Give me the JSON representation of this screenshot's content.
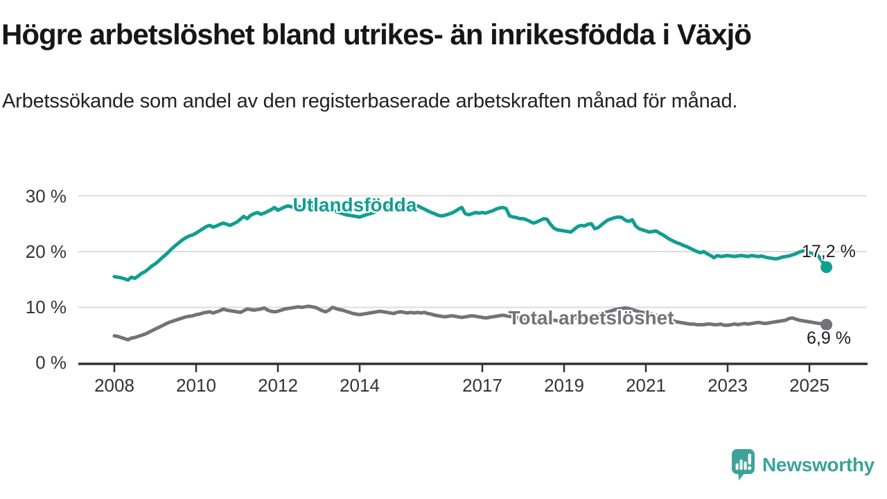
{
  "header": {
    "title": "Högre arbetslöshet bland utrikes- än inrikesfödda i Växjö",
    "subtitle": "Arbetssökande som andel av den registerbaserade arbetskraften månad för månad."
  },
  "chart_data": {
    "type": "line",
    "title": "Högre arbetslöshet bland utrikes- än inrikesfödda i Växjö",
    "unit": "%",
    "x_start": "2008-01",
    "x_end": "2025-06",
    "frequency": "monthly",
    "grid": "horizontal",
    "legend_position": "inline-labels",
    "ylim": [
      0,
      32
    ],
    "y_ticks": [
      "30 %",
      "20 %",
      "10 %",
      "0 %"
    ],
    "y_tick_values": [
      30,
      20,
      10,
      0
    ],
    "x_ticks": [
      "2008",
      "2010",
      "2012",
      "2014",
      "2017",
      "2019",
      "2021",
      "2023",
      "2025"
    ],
    "x_tick_years": [
      2008,
      2010,
      2012,
      2014,
      2017,
      2019,
      2021,
      2023,
      2025
    ],
    "series": [
      {
        "name": "Utlandsfödda",
        "color": "#119e90",
        "end_label": "17,2 %",
        "last_value": 17.2,
        "values": [
          15.5,
          15.4,
          15.3,
          15.1,
          14.9,
          15.4,
          15.2,
          15.6,
          16.1,
          16.4,
          16.9,
          17.4,
          17.8,
          18.3,
          18.9,
          19.4,
          20.0,
          20.6,
          21.1,
          21.6,
          22.1,
          22.5,
          22.8,
          23.0,
          23.3,
          23.7,
          24.1,
          24.5,
          24.7,
          24.4,
          24.6,
          24.9,
          25.1,
          24.9,
          24.7,
          25.0,
          25.3,
          25.8,
          26.3,
          25.9,
          26.5,
          26.8,
          27.0,
          26.7,
          26.9,
          27.2,
          27.5,
          27.9,
          27.4,
          27.7,
          28.0,
          28.2,
          28.0,
          28.3,
          28.1,
          27.9,
          28.2,
          28.4,
          28.2,
          28.0,
          28.3,
          28.1,
          27.9,
          27.7,
          27.5,
          27.2,
          27.0,
          26.8,
          26.6,
          26.5,
          26.4,
          26.3,
          26.2,
          26.4,
          26.6,
          26.8,
          27.0,
          27.2,
          27.4,
          27.6,
          27.8,
          28.0,
          28.1,
          28.2,
          28.2,
          28.0,
          27.9,
          28.1,
          28.3,
          28.2,
          27.9,
          27.6,
          27.3,
          27.0,
          26.8,
          26.5,
          26.4,
          26.5,
          26.7,
          26.9,
          27.2,
          27.6,
          27.9,
          26.8,
          26.6,
          26.8,
          27.0,
          26.9,
          27.0,
          26.9,
          27.1,
          27.3,
          27.6,
          27.8,
          27.9,
          27.7,
          26.4,
          26.2,
          26.1,
          25.9,
          25.9,
          25.7,
          25.4,
          25.1,
          25.3,
          25.6,
          25.9,
          25.8,
          24.9,
          24.2,
          23.9,
          23.8,
          23.7,
          23.6,
          23.5,
          24.0,
          24.5,
          24.7,
          24.6,
          24.9,
          25.0,
          24.1,
          24.3,
          24.8,
          25.3,
          25.7,
          25.9,
          26.1,
          26.2,
          26.1,
          25.6,
          25.4,
          25.7,
          24.6,
          24.1,
          23.9,
          23.7,
          23.5,
          23.6,
          23.7,
          23.3,
          23.0,
          22.6,
          22.2,
          21.9,
          21.6,
          21.4,
          21.1,
          20.9,
          20.6,
          20.3,
          20.0,
          19.8,
          20.0,
          19.6,
          19.3,
          18.9,
          19.3,
          19.1,
          19.2,
          19.3,
          19.2,
          19.1,
          19.2,
          19.3,
          19.2,
          19.1,
          19.3,
          19.2,
          19.1,
          19.2,
          19.0,
          18.9,
          18.8,
          18.7,
          18.8,
          19.0,
          19.1,
          19.2,
          19.4,
          19.6,
          19.9,
          20.1,
          20.3,
          19.8,
          19.5,
          19.7,
          18.9,
          18.0,
          17.2
        ]
      },
      {
        "name": "Total arbetslöshet",
        "color": "#757179",
        "end_label": "6,9 %",
        "last_value": 6.9,
        "values": [
          4.9,
          4.8,
          4.6,
          4.4,
          4.2,
          4.5,
          4.6,
          4.8,
          5.0,
          5.2,
          5.5,
          5.8,
          6.1,
          6.4,
          6.7,
          7.0,
          7.3,
          7.5,
          7.7,
          7.9,
          8.1,
          8.3,
          8.4,
          8.5,
          8.7,
          8.8,
          9.0,
          9.1,
          9.2,
          9.0,
          9.2,
          9.4,
          9.7,
          9.5,
          9.4,
          9.3,
          9.2,
          9.1,
          9.4,
          9.7,
          9.6,
          9.5,
          9.6,
          9.7,
          9.9,
          9.5,
          9.3,
          9.2,
          9.3,
          9.5,
          9.7,
          9.8,
          9.9,
          10.0,
          10.1,
          10.0,
          10.1,
          10.2,
          10.1,
          10.0,
          9.7,
          9.4,
          9.2,
          9.5,
          10.0,
          9.8,
          9.6,
          9.5,
          9.3,
          9.1,
          8.9,
          8.8,
          8.7,
          8.8,
          8.9,
          9.0,
          9.1,
          9.2,
          9.3,
          9.2,
          9.1,
          9.0,
          8.9,
          9.1,
          9.2,
          9.1,
          9.0,
          9.1,
          9.0,
          9.1,
          9.0,
          9.1,
          8.9,
          8.8,
          8.6,
          8.5,
          8.4,
          8.3,
          8.4,
          8.5,
          8.4,
          8.3,
          8.2,
          8.3,
          8.4,
          8.5,
          8.4,
          8.3,
          8.2,
          8.1,
          8.2,
          8.3,
          8.4,
          8.5,
          8.6,
          8.5,
          8.4,
          8.3,
          8.2,
          8.1,
          8.0,
          7.9,
          7.8,
          7.7,
          7.8,
          7.9,
          8.0,
          7.9,
          7.8,
          7.7,
          7.6,
          7.7,
          7.8,
          7.9,
          8.0,
          8.1,
          8.2,
          8.3,
          8.5,
          8.4,
          8.5,
          8.6,
          8.7,
          8.9,
          9.1,
          9.2,
          9.4,
          9.6,
          9.7,
          9.8,
          9.9,
          9.8,
          9.6,
          9.4,
          9.2,
          9.1,
          9.0,
          8.9,
          8.8,
          8.6,
          8.4,
          8.2,
          8.0,
          7.8,
          7.6,
          7.4,
          7.3,
          7.2,
          7.1,
          7.0,
          7.0,
          6.9,
          6.9,
          6.9,
          7.0,
          7.0,
          6.9,
          6.9,
          7.0,
          6.8,
          6.8,
          6.9,
          7.0,
          6.9,
          7.0,
          7.1,
          7.0,
          7.1,
          7.2,
          7.3,
          7.2,
          7.1,
          7.2,
          7.3,
          7.4,
          7.5,
          7.6,
          7.7,
          8.0,
          8.1,
          7.9,
          7.7,
          7.6,
          7.5,
          7.4,
          7.3,
          7.2,
          7.1,
          7.0,
          6.9
        ]
      }
    ],
    "style": {
      "gridline_color": "#dbdbdb",
      "axis_color": "#303030",
      "tick_label_color": "#333333",
      "annotation_color": "#1d1d1d"
    }
  },
  "branding": {
    "logo_text": "Newsworthy",
    "logo_color": "#3aa39a"
  }
}
